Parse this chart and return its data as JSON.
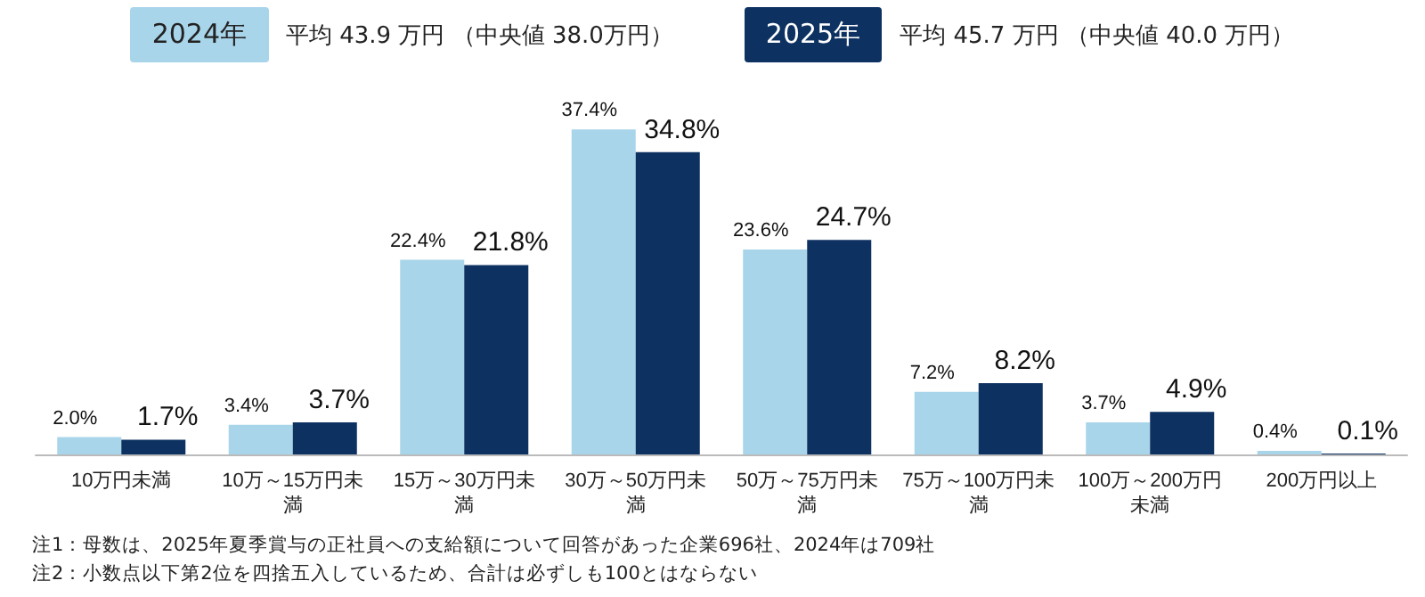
{
  "chart_data": {
    "type": "bar",
    "categories": [
      "10万円未満",
      "10万～15万円未満",
      "15万～30万円未満",
      "30万～50万円未満",
      "50万～75万円未満",
      "75万～100万円未満",
      "100万～200万円未満",
      "200万円以上"
    ],
    "series": [
      {
        "name": "2024年",
        "color": "#a9d5ea",
        "values": [
          2.0,
          3.4,
          22.4,
          37.4,
          23.6,
          7.2,
          3.7,
          0.4
        ],
        "value_labels": [
          "2.0%",
          "3.4%",
          "22.4%",
          "37.4%",
          "23.6%",
          "7.2%",
          "3.7%",
          "0.4%"
        ]
      },
      {
        "name": "2025年",
        "color": "#0d3161",
        "values": [
          1.7,
          3.7,
          21.8,
          34.8,
          24.7,
          8.2,
          4.9,
          0.1
        ],
        "value_labels": [
          "1.7%",
          "3.7%",
          "21.8%",
          "34.8%",
          "24.7%",
          "8.2%",
          "4.9%",
          "0.1%"
        ]
      }
    ],
    "legend": "top",
    "annotations": [
      "平均 43.9 万円 （中央値 38.0万円）",
      "平均 45.7 万円 （中央値 40.0 万円）",
      "注1：母数は、2025年夏季賞与の正社員への支給額について回答があった企業696社、2024年は709社",
      "注2：小数点以下第2位を四捨五入しているため、合計は必ずしも100とはならない"
    ]
  }
}
